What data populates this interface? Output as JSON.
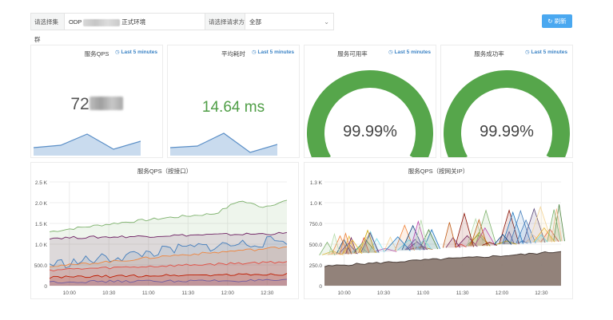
{
  "toolbar": {
    "cluster_label": "请选择集群",
    "cluster_value_prefix": "ODP",
    "cluster_value_suffix": "正式环境",
    "requester_label": "请选择请求方",
    "requester_value": "全部",
    "refresh_label": "刷新"
  },
  "stats": [
    {
      "title": "服务QPS",
      "time_range": "Last 5 minutes",
      "value_prefix": "72",
      "value": ""
    },
    {
      "title": "平均耗时",
      "time_range": "Last 5 minutes",
      "value": "14.64 ms"
    }
  ],
  "gauges": [
    {
      "title": "服务可用率",
      "time_range": "Last 5 minutes",
      "value": "99.99%",
      "fraction": 0.9999
    },
    {
      "title": "服务成功率",
      "time_range": "Last 5 minutes",
      "value": "99.99%",
      "fraction": 0.9999
    }
  ],
  "colors": {
    "accent": "#4aa8f0",
    "green": "#56a64b",
    "red": "#c4463a",
    "value_green": "#4f9e46",
    "time_blue": "#3b83c5"
  },
  "chart_data": [
    {
      "type": "area",
      "title": "服务QPS（按接口）",
      "x_ticks": [
        "10:00",
        "10:30",
        "11:00",
        "11:30",
        "12:00",
        "12:30"
      ],
      "y_ticks": [
        "0",
        "500.0",
        "1.0 K",
        "1.5 K",
        "2.0 K",
        "2.5 K"
      ],
      "ylim": [
        0,
        2500
      ],
      "grid": true,
      "series": [
        {
          "color": "#7eb26d",
          "values": [
            1300,
            1380,
            1450,
            1520,
            1580,
            1640,
            1690,
            1740,
            2050,
            1900,
            2050
          ]
        },
        {
          "color": "#6d1f62",
          "values": [
            1150,
            1160,
            1170,
            1180,
            1190,
            1210,
            1220,
            1230,
            1240,
            1250,
            1260
          ]
        },
        {
          "color": "#447ebc",
          "values": [
            520,
            560,
            640,
            700,
            780,
            850,
            920,
            960,
            1000,
            1050,
            1100
          ]
        },
        {
          "color": "#ef843c",
          "values": [
            480,
            500,
            560,
            600,
            660,
            720,
            760,
            800,
            850,
            880,
            950
          ]
        },
        {
          "color": "#e24d42",
          "values": [
            380,
            400,
            420,
            440,
            460,
            480,
            500,
            520,
            540,
            560,
            580
          ]
        },
        {
          "color": "#bf1b00",
          "values": [
            200,
            210,
            220,
            230,
            240,
            250,
            255,
            260,
            265,
            270,
            280
          ]
        },
        {
          "color": "#705da0",
          "values": [
            90,
            95,
            100,
            105,
            110,
            112,
            115,
            118,
            120,
            122,
            125
          ]
        }
      ]
    },
    {
      "type": "area",
      "title": "服务QPS（按网关IP）",
      "x_ticks": [
        "10:00",
        "10:30",
        "11:00",
        "11:30",
        "12:00",
        "12:30"
      ],
      "y_ticks": [
        "0",
        "250.0",
        "500.0",
        "750.0",
        "1.0 K",
        "1.3 K"
      ],
      "ylim": [
        0,
        1300
      ],
      "grid": true,
      "baseline": {
        "color": "#8c7b73",
        "values": [
          240,
          260,
          275,
          290,
          305,
          320,
          335,
          345,
          360,
          375,
          390,
          410,
          430
        ]
      },
      "spikes": {
        "min": 400,
        "max": 1100,
        "count": 62
      }
    }
  ]
}
